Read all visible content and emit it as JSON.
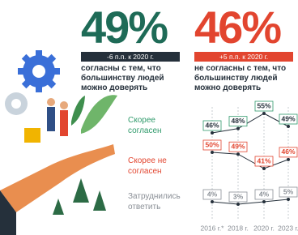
{
  "headlines": [
    {
      "value": "49%",
      "change": "-6 п.п. к 2020 г.",
      "text": "согласны с тем, что большинству людей можно доверять",
      "color": "#1e6b57",
      "box": "#25303b"
    },
    {
      "value": "46%",
      "change": "+5 п.п. к 2020 г.",
      "text": "не согласны с тем, что большинству людей можно доверять",
      "color": "#e2452f",
      "box": "#e2452f"
    }
  ],
  "chart_data": {
    "type": "line",
    "x": [
      "2016 г.*",
      "2018 г.",
      "2020 г.",
      "2023 г."
    ],
    "series": [
      {
        "name": "Скорее согласен",
        "color": "#2f9a6b",
        "values": [
          46,
          48,
          55,
          49
        ],
        "value_labels": [
          "46%",
          "48%",
          "55%",
          "49%"
        ]
      },
      {
        "name": "Скорее не согласен",
        "color": "#e2452f",
        "values": [
          50,
          49,
          41,
          46
        ],
        "value_labels": [
          "50%",
          "49%",
          "41%",
          "46%"
        ]
      },
      {
        "name": "Затруднились ответить",
        "color": "#8a8f96",
        "values": [
          4,
          3,
          4,
          5
        ],
        "value_labels": [
          "4%",
          "3%",
          "4%",
          "5%"
        ]
      }
    ]
  }
}
